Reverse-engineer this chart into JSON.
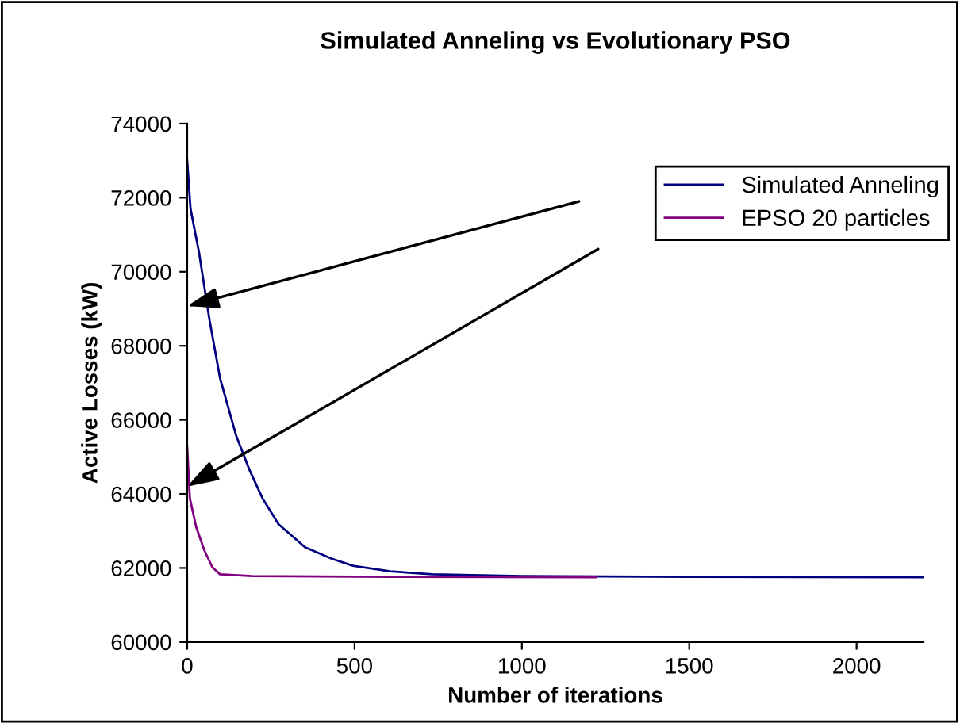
{
  "chart_data": {
    "type": "line",
    "title": "Simulated Anneling vs Evolutionary PSO",
    "xlabel": "Number of iterations",
    "ylabel": "Active Losses (kW)",
    "series": [
      {
        "name": "Simulated Anneling",
        "color": "#000080",
        "x": [
          0,
          10,
          35,
          67,
          98,
          146,
          186,
          225,
          273,
          352,
          432,
          495,
          606,
          733,
          1000,
          1500,
          2200
        ],
        "values": [
          73000,
          71700,
          70540,
          68680,
          67130,
          65580,
          64650,
          63880,
          63180,
          62560,
          62250,
          62060,
          61910,
          61830,
          61780,
          61760,
          61750
        ]
      },
      {
        "name": "EPSO 20 particles",
        "color": "#800080",
        "x": [
          0,
          8,
          27,
          51,
          75,
          98,
          194,
          600,
          1220
        ],
        "values": [
          65270,
          63880,
          63100,
          62480,
          62020,
          61830,
          61780,
          61760,
          61750
        ]
      }
    ],
    "xlim": [
      0,
      2200
    ],
    "xticks": [
      0,
      500,
      1000,
      1500,
      2000
    ],
    "ylim": [
      60000,
      74000
    ],
    "yticks": [
      60000,
      62000,
      64000,
      66000,
      68000,
      70000,
      72000,
      74000
    ],
    "grid": false,
    "legend": "top right",
    "marker": "none",
    "line_style": "solid"
  }
}
